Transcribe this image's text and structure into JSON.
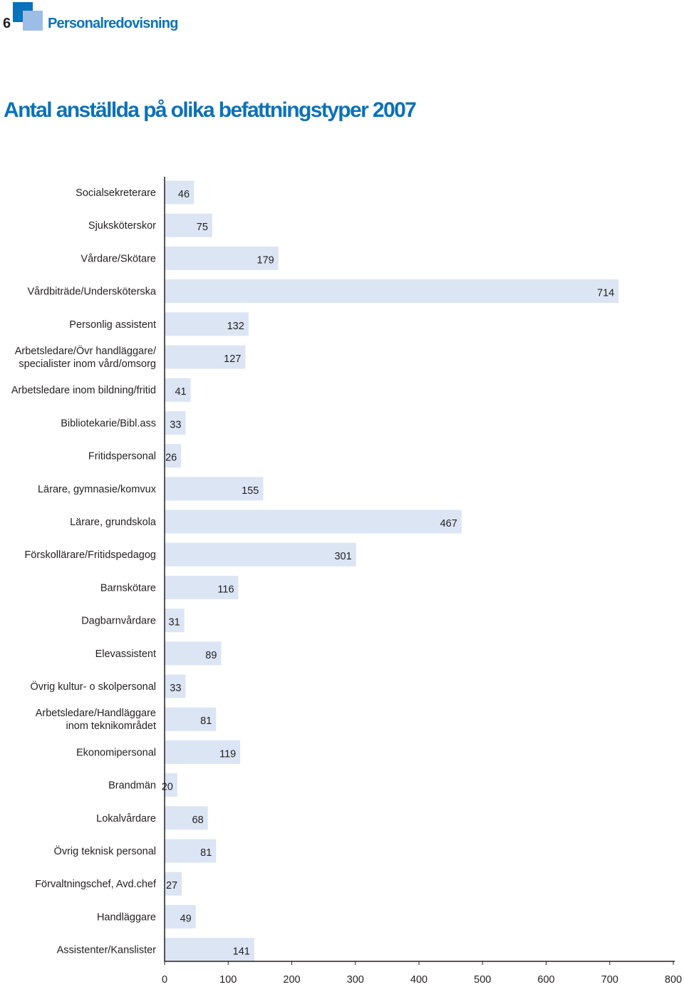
{
  "header": {
    "page_number": "6",
    "section_title": "Personalredovisning"
  },
  "colors": {
    "brand_blue": "#0a72b9",
    "light_blue": "#9cbde6",
    "bar_fill": "#dbe5f4",
    "axis": "#231f20"
  },
  "chart_data": {
    "type": "bar",
    "orientation": "horizontal",
    "title": "Antal anställda på olika befattningstyper 2007",
    "categories": [
      "Socialsekreterare",
      "Sjuksköterskor",
      "Vårdare/Skötare",
      "Vårdbiträde/Undersköterska",
      "Personlig assistent",
      "Arbetsledare/Övr handläggare/ specialister inom vård/omsorg",
      "Arbetsledare inom bildning/fritid",
      "Bibliotekarie/Bibl.ass",
      "Fritidspersonal",
      "Lärare, gymnasie/komvux",
      "Lärare, grundskola",
      "Förskollärare/Fritidspedagog",
      "Barnskötare",
      "Dagbarnvårdare",
      "Elevassistent",
      "Övrig kultur- o skolpersonal",
      "Arbetsledare/Handläggare inom teknikområdet",
      "Ekonomipersonal",
      "Brandmän",
      "Lokalvårdare",
      "Övrig teknisk personal",
      "Förvaltningschef, Avd.chef",
      "Handläggare",
      "Assistenter/Kanslister"
    ],
    "category_lines": [
      [
        "Socialsekreterare"
      ],
      [
        "Sjuksköterskor"
      ],
      [
        "Vårdare/Skötare"
      ],
      [
        "Vårdbiträde/Undersköterska"
      ],
      [
        "Personlig assistent"
      ],
      [
        "Arbetsledare/Övr handläggare/",
        "specialister inom vård/omsorg"
      ],
      [
        "Arbetsledare inom bildning/fritid"
      ],
      [
        "Bibliotekarie/Bibl.ass"
      ],
      [
        "Fritidspersonal"
      ],
      [
        "Lärare, gymnasie/komvux"
      ],
      [
        "Lärare, grundskola"
      ],
      [
        "Förskollärare/Fritidspedagog"
      ],
      [
        "Barnskötare"
      ],
      [
        "Dagbarnvårdare"
      ],
      [
        "Elevassistent"
      ],
      [
        "Övrig kultur- o skolpersonal"
      ],
      [
        "Arbetsledare/Handläggare",
        "inom teknikområdet"
      ],
      [
        "Ekonomipersonal"
      ],
      [
        "Brandmän"
      ],
      [
        "Lokalvårdare"
      ],
      [
        "Övrig teknisk personal"
      ],
      [
        "Förvaltningschef, Avd.chef"
      ],
      [
        "Handläggare"
      ],
      [
        "Assistenter/Kanslister"
      ]
    ],
    "values": [
      46,
      75,
      179,
      714,
      132,
      127,
      41,
      33,
      26,
      155,
      467,
      301,
      116,
      31,
      89,
      33,
      81,
      119,
      20,
      68,
      81,
      27,
      49,
      141
    ],
    "xlim": [
      0,
      800
    ],
    "xticks": [
      0,
      100,
      200,
      300,
      400,
      500,
      600,
      700,
      800
    ],
    "xlabel": "",
    "ylabel": "",
    "grid": false,
    "legend": "none"
  }
}
